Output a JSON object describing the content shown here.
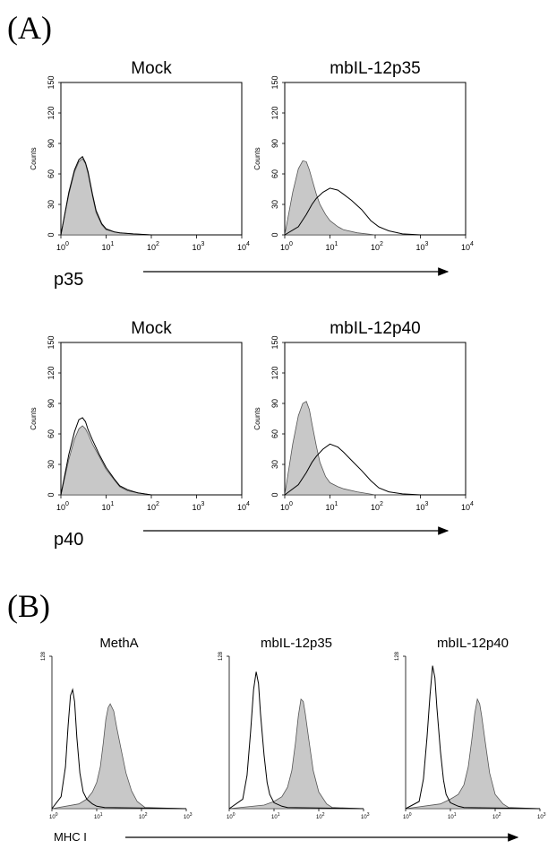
{
  "panel_labels": {
    "a": "(A)",
    "b": "(B)"
  },
  "chart_data": [
    {
      "type": "line",
      "panel": "A",
      "title": "Mock",
      "xlabel": "p35",
      "ylabel": "Counts",
      "xscale": "log",
      "xlim": [
        1,
        10000
      ],
      "xticks": [
        {
          "base": "10",
          "exp": "0"
        },
        {
          "base": "10",
          "exp": "1"
        },
        {
          "base": "10",
          "exp": "2"
        },
        {
          "base": "10",
          "exp": "3"
        },
        {
          "base": "10",
          "exp": "4"
        }
      ],
      "ylim": [
        0,
        150
      ],
      "yticks": [
        "0",
        "30",
        "60",
        "90",
        "120",
        "150"
      ],
      "series": [
        {
          "style": "filled-gray",
          "x": [
            1,
            1.5,
            2,
            2.5,
            3,
            3.5,
            4,
            5,
            6,
            8,
            10,
            15,
            20,
            40,
            100,
            1000,
            10000
          ],
          "values": [
            0,
            40,
            62,
            72,
            75,
            70,
            60,
            38,
            22,
            10,
            5,
            3,
            2,
            1,
            0,
            0,
            0
          ]
        },
        {
          "style": "open-black",
          "x": [
            1,
            1.5,
            2,
            2.5,
            3,
            3.5,
            4,
            5,
            6,
            8,
            10,
            15,
            20,
            40,
            100,
            1000,
            10000
          ],
          "values": [
            0,
            42,
            64,
            74,
            77,
            71,
            62,
            40,
            24,
            11,
            6,
            3,
            2,
            1,
            0,
            0,
            0
          ]
        }
      ]
    },
    {
      "type": "line",
      "panel": "A",
      "title": "mbIL-12p35",
      "xlabel": "p35",
      "ylabel": "Counts",
      "xscale": "log",
      "xlim": [
        1,
        10000
      ],
      "xticks": [
        {
          "base": "10",
          "exp": "0"
        },
        {
          "base": "10",
          "exp": "1"
        },
        {
          "base": "10",
          "exp": "2"
        },
        {
          "base": "10",
          "exp": "3"
        },
        {
          "base": "10",
          "exp": "4"
        }
      ],
      "ylim": [
        0,
        150
      ],
      "yticks": [
        "0",
        "30",
        "60",
        "90",
        "120",
        "150"
      ],
      "series": [
        {
          "style": "filled-gray",
          "x": [
            1,
            1.5,
            2,
            2.5,
            3,
            3.5,
            4,
            5,
            6,
            8,
            10,
            15,
            20,
            40,
            100,
            1000,
            10000
          ],
          "values": [
            0,
            42,
            65,
            73,
            72,
            64,
            55,
            40,
            30,
            20,
            14,
            8,
            5,
            2,
            0,
            0,
            0
          ]
        },
        {
          "style": "open-black",
          "x": [
            1,
            2,
            3,
            4,
            5,
            7,
            10,
            15,
            20,
            30,
            50,
            80,
            120,
            200,
            400,
            1000,
            10000
          ],
          "values": [
            0,
            8,
            20,
            30,
            36,
            42,
            46,
            44,
            40,
            34,
            25,
            14,
            8,
            4,
            1,
            0,
            0
          ]
        }
      ]
    },
    {
      "type": "line",
      "panel": "A",
      "title": "Mock",
      "xlabel": "p40",
      "ylabel": "Counts",
      "xscale": "log",
      "xlim": [
        1,
        10000
      ],
      "xticks": [
        {
          "base": "10",
          "exp": "0"
        },
        {
          "base": "10",
          "exp": "1"
        },
        {
          "base": "10",
          "exp": "2"
        },
        {
          "base": "10",
          "exp": "3"
        },
        {
          "base": "10",
          "exp": "4"
        }
      ],
      "ylim": [
        0,
        150
      ],
      "yticks": [
        "0",
        "30",
        "60",
        "90",
        "120",
        "150"
      ],
      "series": [
        {
          "style": "filled-gray",
          "x": [
            1,
            1.5,
            2,
            2.5,
            3,
            3.5,
            4,
            5,
            7,
            10,
            15,
            20,
            30,
            50,
            100,
            1000,
            10000
          ],
          "values": [
            0,
            35,
            55,
            65,
            68,
            65,
            60,
            50,
            38,
            25,
            15,
            8,
            4,
            2,
            0,
            0,
            0
          ]
        },
        {
          "style": "open-black",
          "x": [
            1,
            1.5,
            2,
            2.5,
            3,
            3.5,
            4,
            5,
            7,
            10,
            15,
            20,
            30,
            50,
            100,
            1000,
            10000
          ],
          "values": [
            0,
            40,
            62,
            74,
            76,
            72,
            64,
            54,
            40,
            27,
            16,
            9,
            5,
            2,
            0,
            0,
            0
          ]
        }
      ]
    },
    {
      "type": "line",
      "panel": "A",
      "title": "mbIL-12p40",
      "xlabel": "p40",
      "ylabel": "Counts",
      "xscale": "log",
      "xlim": [
        1,
        10000
      ],
      "xticks": [
        {
          "base": "10",
          "exp": "0"
        },
        {
          "base": "10",
          "exp": "1"
        },
        {
          "base": "10",
          "exp": "2"
        },
        {
          "base": "10",
          "exp": "3"
        },
        {
          "base": "10",
          "exp": "4"
        }
      ],
      "ylim": [
        0,
        150
      ],
      "yticks": [
        "0",
        "30",
        "60",
        "90",
        "120",
        "150"
      ],
      "series": [
        {
          "style": "filled-gray",
          "x": [
            1,
            1.5,
            2,
            2.5,
            3,
            3.5,
            4,
            5,
            6,
            8,
            10,
            15,
            20,
            40,
            100,
            1000,
            10000
          ],
          "values": [
            0,
            50,
            78,
            90,
            92,
            84,
            70,
            48,
            32,
            18,
            12,
            8,
            6,
            3,
            0,
            0,
            0
          ]
        },
        {
          "style": "open-black",
          "x": [
            1,
            2,
            3,
            4,
            5,
            7,
            10,
            15,
            20,
            30,
            50,
            80,
            120,
            200,
            400,
            1000,
            10000
          ],
          "values": [
            0,
            10,
            22,
            32,
            38,
            45,
            50,
            47,
            42,
            34,
            24,
            14,
            7,
            3,
            1,
            0,
            0
          ]
        }
      ]
    },
    {
      "type": "line",
      "panel": "B",
      "title": "MethA",
      "xlabel": "MHC I",
      "xscale": "log",
      "xlim": [
        1,
        1000
      ],
      "xticks": [
        {
          "base": "10",
          "exp": "0"
        },
        {
          "base": "10",
          "exp": "1"
        },
        {
          "base": "10",
          "exp": "2"
        },
        {
          "base": "10",
          "exp": "3"
        }
      ],
      "ylim": [
        0,
        128
      ],
      "yticks": [
        "128"
      ],
      "series": [
        {
          "style": "filled-gray",
          "x": [
            1,
            4,
            6,
            8,
            10,
            12,
            14,
            16,
            18,
            20,
            24,
            28,
            35,
            45,
            60,
            80,
            120,
            1000
          ],
          "values": [
            0,
            4,
            8,
            14,
            22,
            35,
            55,
            75,
            85,
            88,
            82,
            68,
            50,
            30,
            15,
            6,
            1,
            0
          ]
        },
        {
          "style": "open-black",
          "x": [
            1,
            1.6,
            2,
            2.3,
            2.6,
            2.9,
            3.2,
            3.6,
            4.2,
            5,
            6,
            8,
            10,
            15,
            1000
          ],
          "values": [
            0,
            10,
            35,
            70,
            95,
            100,
            90,
            60,
            30,
            14,
            8,
            4,
            2,
            1,
            0
          ]
        }
      ]
    },
    {
      "type": "line",
      "panel": "B",
      "title": "mbIL-12p35",
      "xlabel": "MHC I",
      "xscale": "log",
      "xlim": [
        1,
        1000
      ],
      "xticks": [
        {
          "base": "10",
          "exp": "0"
        },
        {
          "base": "10",
          "exp": "1"
        },
        {
          "base": "10",
          "exp": "2"
        },
        {
          "base": "10",
          "exp": "3"
        }
      ],
      "ylim": [
        0,
        128
      ],
      "yticks": [
        "128"
      ],
      "series": [
        {
          "style": "filled-gray",
          "x": [
            1,
            6,
            10,
            15,
            20,
            25,
            30,
            35,
            40,
            45,
            50,
            60,
            75,
            100,
            150,
            200,
            1000
          ],
          "values": [
            0,
            3,
            6,
            10,
            18,
            32,
            55,
            78,
            92,
            90,
            80,
            58,
            32,
            14,
            4,
            1,
            0
          ]
        },
        {
          "style": "open-black",
          "x": [
            1,
            2,
            2.5,
            3,
            3.5,
            4,
            4.5,
            5,
            6,
            7,
            8,
            10,
            15,
            20,
            1000
          ],
          "values": [
            0,
            8,
            28,
            65,
            100,
            115,
            105,
            80,
            45,
            22,
            12,
            5,
            2,
            1,
            0
          ]
        }
      ]
    },
    {
      "type": "line",
      "panel": "B",
      "title": "mbIL-12p40",
      "xlabel": "MHC I",
      "xscale": "log",
      "xlim": [
        1,
        1000
      ],
      "xticks": [
        {
          "base": "10",
          "exp": "0"
        },
        {
          "base": "10",
          "exp": "1"
        },
        {
          "base": "10",
          "exp": "2"
        },
        {
          "base": "10",
          "exp": "3"
        }
      ],
      "ylim": [
        0,
        128
      ],
      "yticks": [
        "128"
      ],
      "series": [
        {
          "style": "filled-gray",
          "x": [
            1,
            6,
            10,
            15,
            20,
            25,
            30,
            35,
            40,
            45,
            50,
            60,
            75,
            100,
            150,
            200,
            1000
          ],
          "values": [
            0,
            4,
            8,
            12,
            20,
            35,
            58,
            80,
            92,
            88,
            78,
            56,
            30,
            12,
            4,
            1,
            0
          ]
        },
        {
          "style": "open-black",
          "x": [
            1,
            2,
            2.5,
            3,
            3.5,
            4,
            4.5,
            5,
            6,
            7,
            8,
            10,
            15,
            20,
            1000
          ],
          "values": [
            0,
            6,
            25,
            60,
            95,
            120,
            110,
            85,
            48,
            24,
            12,
            5,
            2,
            1,
            0
          ]
        }
      ]
    }
  ]
}
